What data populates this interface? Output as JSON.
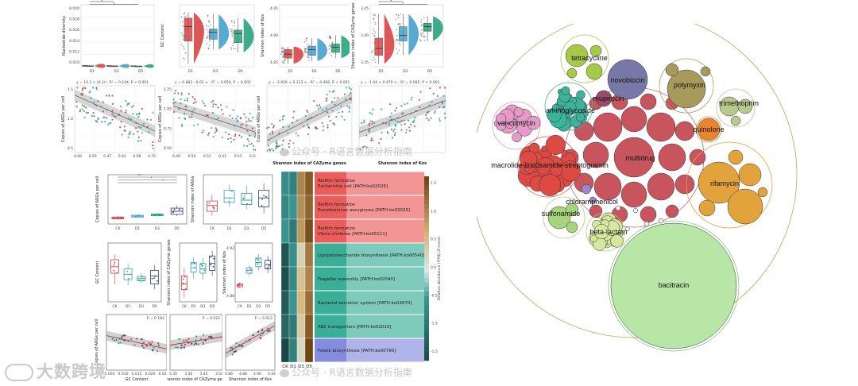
{
  "chart_data": [
    {
      "type": "box",
      "panel": "top-rain-1",
      "ylabel": "Nucleotide diversity",
      "categories": [
        "D1",
        "D3",
        "D5"
      ],
      "yticks": [
        "0.020",
        "0.018",
        "0.016",
        "0.014",
        "0.012",
        "0.010"
      ],
      "ylim": [
        0.009,
        0.021
      ],
      "values": [
        {
          "q1": 0.0114,
          "median": 0.0135,
          "q3": 0.0176,
          "min": 0.0098,
          "max": 0.0206
        },
        {
          "q1": 0.0108,
          "median": 0.0125,
          "q3": 0.0148,
          "min": 0.0098,
          "max": 0.018
        },
        {
          "q1": 0.0102,
          "median": 0.011,
          "q3": 0.0118,
          "min": 0.0098,
          "max": 0.0128
        }
      ],
      "colors": [
        "#d63a3a",
        "#3a9bc9",
        "#1b9e77"
      ],
      "significance": [
        "*",
        "*"
      ]
    },
    {
      "type": "box",
      "panel": "top-rain-2",
      "ylabel": "GC Content",
      "categories": [
        "D1",
        "D3",
        "D5"
      ],
      "yticks": [],
      "colors": [
        "#d63a3a",
        "#3a9bc9",
        "#1b9e77"
      ],
      "values": [
        {
          "q1": 0.45,
          "median": 0.7,
          "q3": 0.85,
          "min": 0.05,
          "max": 0.95
        },
        {
          "q1": 0.48,
          "median": 0.6,
          "q3": 0.66,
          "min": 0.3,
          "max": 0.92
        },
        {
          "q1": 0.42,
          "median": 0.58,
          "q3": 0.64,
          "min": 0.25,
          "max": 0.85
        }
      ]
    },
    {
      "type": "box",
      "panel": "top-rain-3",
      "ylabel": "Shannon index of Kos",
      "categories": [
        "D1",
        "D3",
        "D5"
      ],
      "yticks": [
        "4.95",
        "4.90",
        "4.85"
      ],
      "colors": [
        "#d63a3a",
        "#3a9bc9",
        "#1b9e77"
      ],
      "values": [
        {
          "q1": 0.15,
          "median": 0.22,
          "q3": 0.3,
          "min": 0.05,
          "max": 0.35
        },
        {
          "q1": 0.2,
          "median": 0.3,
          "q3": 0.36,
          "min": 0.1,
          "max": 0.5
        },
        {
          "q1": 0.25,
          "median": 0.34,
          "q3": 0.4,
          "min": 0.15,
          "max": 0.55
        }
      ]
    },
    {
      "type": "box",
      "panel": "top-rain-4",
      "ylabel": "Shannon index of CAZyme genes",
      "categories": [
        "D1",
        "D3",
        "D5"
      ],
      "yticks": [
        "3.45",
        "3.40",
        "3.35"
      ],
      "colors": [
        "#d63a3a",
        "#3a9bc9",
        "#1b9e77"
      ],
      "values": [
        {
          "q1": 0.2,
          "median": 0.32,
          "q3": 0.5,
          "min": 0.05,
          "max": 0.92
        },
        {
          "q1": 0.45,
          "median": 0.55,
          "q3": 0.7,
          "min": 0.2,
          "max": 0.92
        },
        {
          "q1": 0.62,
          "median": 0.7,
          "q3": 0.76,
          "min": 0.45,
          "max": 0.88
        }
      ],
      "significance": [
        "*",
        "*"
      ]
    },
    {
      "type": "scatter",
      "panel": "top-scatter-1",
      "ylabel": "Copies of ARGs per cell",
      "equation": "y = 10.2 × (0.1)ˣ, R² = 0.104, P < 0.001",
      "xticks": [
        "0.00",
        "0.50",
        "0.47",
        "0.62",
        "0.68",
        "0.75"
      ],
      "yticks": [
        "1.5",
        "1.0",
        "0.5"
      ],
      "trend": [
        [
          0.0,
          0.86
        ],
        [
          1.0,
          0.32
        ]
      ]
    },
    {
      "type": "scatter",
      "panel": "top-scatter-2",
      "ylabel": "Copies of ARGs per cell",
      "equation": "y = 0.883 - 0.02 × , R² = 0.050, P = 0.002",
      "xticks": [
        "0.49",
        "0.50",
        "0.51",
        "0.52",
        "0.53",
        "0.54"
      ],
      "yticks": [
        "1.25",
        "1.00",
        "0.75",
        "0.50"
      ],
      "trend": [
        [
          0.0,
          0.7
        ],
        [
          1.0,
          0.3
        ]
      ]
    },
    {
      "type": "scatter",
      "panel": "top-scatter-3",
      "ylabel": "Copies of ARGs per cell",
      "equation": "y = -3.926 + 0.313 × , R² = 0.466, P < 0.001",
      "xlabel": "Shannon index of CAZyme genes",
      "trend": [
        [
          0.0,
          0.18
        ],
        [
          1.0,
          0.82
        ]
      ]
    },
    {
      "type": "scatter",
      "panel": "top-scatter-4",
      "equation": "y = -1.44 + 0.470 × , R² = 0.085, P < 0.001",
      "xlabel": "Shannon index of Kos",
      "trend": [
        [
          0.0,
          0.3
        ],
        [
          1.0,
          0.78
        ]
      ]
    },
    {
      "type": "box",
      "panel": "mid-box-1",
      "ylabel": "Copies of ARGs per cell",
      "categories": [
        "CK",
        "D1",
        "D3",
        "D5"
      ],
      "colors": [
        "#d63a3a",
        "#3a9bc9",
        "#1b9e77",
        "#2c3e7a"
      ],
      "values": [
        {
          "q1": 0.08,
          "median": 0.1,
          "q3": 0.12,
          "min": 0.06,
          "max": 0.14
        },
        {
          "q1": 0.12,
          "median": 0.14,
          "q3": 0.16,
          "min": 0.1,
          "max": 0.18
        },
        {
          "q1": 0.15,
          "median": 0.17,
          "q3": 0.19,
          "min": 0.13,
          "max": 0.21
        },
        {
          "q1": 0.18,
          "median": 0.25,
          "q3": 0.32,
          "min": 0.14,
          "max": 0.38
        }
      ],
      "significance": [
        "**",
        "*",
        "*"
      ]
    },
    {
      "type": "box",
      "panel": "mid-box-2",
      "ylabel": "Shannon index of ARGs",
      "categories": [
        "CK",
        "D1",
        "D3",
        "D5"
      ],
      "colors": [
        "#d63a3a",
        "#3a9bc9",
        "#1b9e77",
        "#2c3e7a"
      ],
      "values": [
        {
          "q1": 0.25,
          "median": 0.38,
          "q3": 0.48,
          "min": 0.15,
          "max": 0.62
        },
        {
          "q1": 0.45,
          "median": 0.55,
          "q3": 0.72,
          "min": 0.35,
          "max": 0.85
        },
        {
          "q1": 0.4,
          "median": 0.5,
          "q3": 0.65,
          "min": 0.3,
          "max": 0.82
        },
        {
          "q1": 0.35,
          "median": 0.55,
          "q3": 0.72,
          "min": 0.2,
          "max": 0.88
        }
      ]
    },
    {
      "type": "box",
      "panel": "mid-box-3",
      "ylabel": "GC Content",
      "categories": [
        "CK",
        "D1",
        "D3",
        "D5"
      ],
      "colors": [
        "#d63a3a",
        "#3a9bc9",
        "#1b9e77",
        "#2c3e7a"
      ],
      "values": [
        {
          "q1": 0.5,
          "median": 0.62,
          "q3": 0.75,
          "min": 0.3,
          "max": 0.85
        },
        {
          "q1": 0.38,
          "median": 0.48,
          "q3": 0.58,
          "min": 0.28,
          "max": 0.68
        },
        {
          "q1": 0.36,
          "median": 0.4,
          "q3": 0.44,
          "min": 0.32,
          "max": 0.5
        },
        {
          "q1": 0.3,
          "median": 0.45,
          "q3": 0.55,
          "min": 0.2,
          "max": 0.65
        }
      ]
    },
    {
      "type": "box",
      "panel": "mid-box-4",
      "ylabel": "Shannon index of CAZyme genes",
      "categories": [
        "CK",
        "D1",
        "D3",
        "D5"
      ],
      "colors": [
        "#d63a3a",
        "#3a9bc9",
        "#1b9e77",
        "#2c3e7a"
      ],
      "values": [
        {
          "q1": 0.2,
          "median": 0.3,
          "q3": 0.45,
          "min": 0.05,
          "max": 0.6
        },
        {
          "q1": 0.52,
          "median": 0.6,
          "q3": 0.7,
          "min": 0.4,
          "max": 0.8
        },
        {
          "q1": 0.5,
          "median": 0.58,
          "q3": 0.68,
          "min": 0.38,
          "max": 0.78
        },
        {
          "q1": 0.55,
          "median": 0.68,
          "q3": 0.82,
          "min": 0.45,
          "max": 0.92
        }
      ]
    },
    {
      "type": "box",
      "panel": "mid-box-5",
      "ylabel": "Shannon index of Kos",
      "categories": [
        "CK",
        "D1",
        "D3",
        "D5"
      ],
      "yticks": [
        "4.92",
        "4.88"
      ],
      "colors": [
        "#d63a3a",
        "#3a9bc9",
        "#1b9e77",
        "#2c3e7a"
      ],
      "values": [
        {
          "q1": 0.25,
          "median": 0.28,
          "q3": 0.3,
          "min": 0.22,
          "max": 0.33
        },
        {
          "q1": 0.5,
          "median": 0.55,
          "q3": 0.6,
          "min": 0.45,
          "max": 0.65
        },
        {
          "q1": 0.62,
          "median": 0.7,
          "q3": 0.78,
          "min": 0.55,
          "max": 0.85
        },
        {
          "q1": 0.58,
          "median": 0.66,
          "q3": 0.74,
          "min": 0.5,
          "max": 0.82
        }
      ]
    },
    {
      "type": "scatter",
      "panel": "bottom-scatter-1",
      "ylabel": "Copies of ARGs per cell",
      "xlabel": "GC Content",
      "p_value": "P = 0.184",
      "xticks": [
        "0.005",
        "0.010",
        "0.015",
        "0.020",
        "0.025"
      ],
      "trend": [
        [
          0.0,
          0.62
        ],
        [
          1.0,
          0.38
        ]
      ]
    },
    {
      "type": "scatter",
      "panel": "bottom-scatter-2",
      "xlabel": "Shannon index of CAZyme genes",
      "p_value": "P = 0.022",
      "xticks": [
        "3.35",
        "3.40",
        "3.45",
        "3.50"
      ],
      "trend": [
        [
          0.0,
          0.45
        ],
        [
          1.0,
          0.6
        ]
      ]
    },
    {
      "type": "scatter",
      "panel": "bottom-scatter-3",
      "xlabel": "Shannon index of Kos",
      "p_value": "P = 0.012",
      "xticks": [
        "4.86",
        "4.88",
        "4.90",
        "4.92"
      ],
      "trend": [
        [
          0.0,
          0.3
        ],
        [
          1.0,
          0.8
        ]
      ]
    },
    {
      "type": "heatmap",
      "panel": "pathway-heatmap",
      "columns": [
        "CK",
        "D1",
        "D3",
        "D5"
      ],
      "rows": [
        {
          "label_line1": "Biofilm formation",
          "label_line2": "Escherichia coli [PATH:ko02026]",
          "color": "#e8413e",
          "values": [
            -0.6,
            -0.8,
            1.2,
            1.6
          ]
        },
        {
          "label_line1": "Biofilm formation",
          "label_line2": "Pseudomonas aeruginosa [PATH:ko02025]",
          "color": "#e8413e",
          "values": [
            -0.7,
            -0.5,
            1.1,
            1.5
          ]
        },
        {
          "label_line1": "Biofilm formation",
          "label_line2": "Vibrio cholerae [PATH:ko05111]",
          "color": "#e8413e",
          "values": [
            -0.5,
            -0.9,
            1.0,
            1.7
          ]
        },
        {
          "label_line1": "Lipopolysaccharide biosynthesis [PATH:ko00540]",
          "label_line2": "",
          "color": "#17a085",
          "values": [
            -1.5,
            -0.6,
            0.4,
            1.3
          ]
        },
        {
          "label_line1": "Flagellar assembly [PATH:ko02040]",
          "label_line2": "",
          "color": "#17a085",
          "values": [
            -1.6,
            -0.7,
            0.6,
            1.2
          ]
        },
        {
          "label_line1": "Bacterial secretion system [PATH:ko03070]",
          "label_line2": "",
          "color": "#17a085",
          "values": [
            -1.4,
            -0.5,
            0.7,
            1.4
          ]
        },
        {
          "label_line1": "ABC transporters [PATH:ko02010]",
          "label_line2": "",
          "color": "#17a085",
          "values": [
            -1.2,
            -0.9,
            0.5,
            1.6
          ]
        },
        {
          "label_line1": "Folate biosynthesis [PATH:ko00790]",
          "label_line2": "",
          "color": "#6f78d8",
          "values": [
            -1.7,
            -0.8,
            0.3,
            1.8
          ]
        }
      ],
      "colorbar": {
        "label": "Relative abundance (TPM) (Z-score)",
        "ticks": [
          "1.5",
          "1.0",
          "0.5",
          "0.0",
          "-0.5",
          "-1.0",
          "-1.5"
        ],
        "range": [
          -1.7,
          1.8
        ]
      }
    },
    {
      "type": "bubble",
      "panel": "arg-class-bubbles",
      "groups": [
        {
          "name": "tetracycline",
          "color": "#a6c94a"
        },
        {
          "name": "novobiocin",
          "color": "#7777a8"
        },
        {
          "name": "polymyxin",
          "color": "#a89a5c"
        },
        {
          "name": "mupirocin",
          "color": "#9a4a6a"
        },
        {
          "name": "trimethoprim",
          "color": "#b8c98c"
        },
        {
          "name": "aminoglycoside",
          "color": "#3cb39a"
        },
        {
          "name": "vancomycin",
          "color": "#e59ac8"
        },
        {
          "name": "quinolone",
          "color": "#e8852e"
        },
        {
          "name": "multidrug",
          "color": "#c8555e"
        },
        {
          "name": "macrolide-lincosamide-streptogramin",
          "color": "#dd4a44"
        },
        {
          "name": "rifamycin",
          "color": "#e3a33c"
        },
        {
          "name": "chloramphenicol",
          "color": "#9a88c8"
        },
        {
          "name": "sulfonamide",
          "color": "#a6d47a"
        },
        {
          "name": "beta-lactam",
          "color": "#d6e8a0"
        },
        {
          "name": "bacitracin",
          "color": "#b8e6a6"
        }
      ]
    }
  ],
  "watermark": {
    "left": "大数跨境",
    "center_top": "公众号 · R语言数据分析指南",
    "center_bottom": "公众号 · R语言数据分析指南"
  }
}
